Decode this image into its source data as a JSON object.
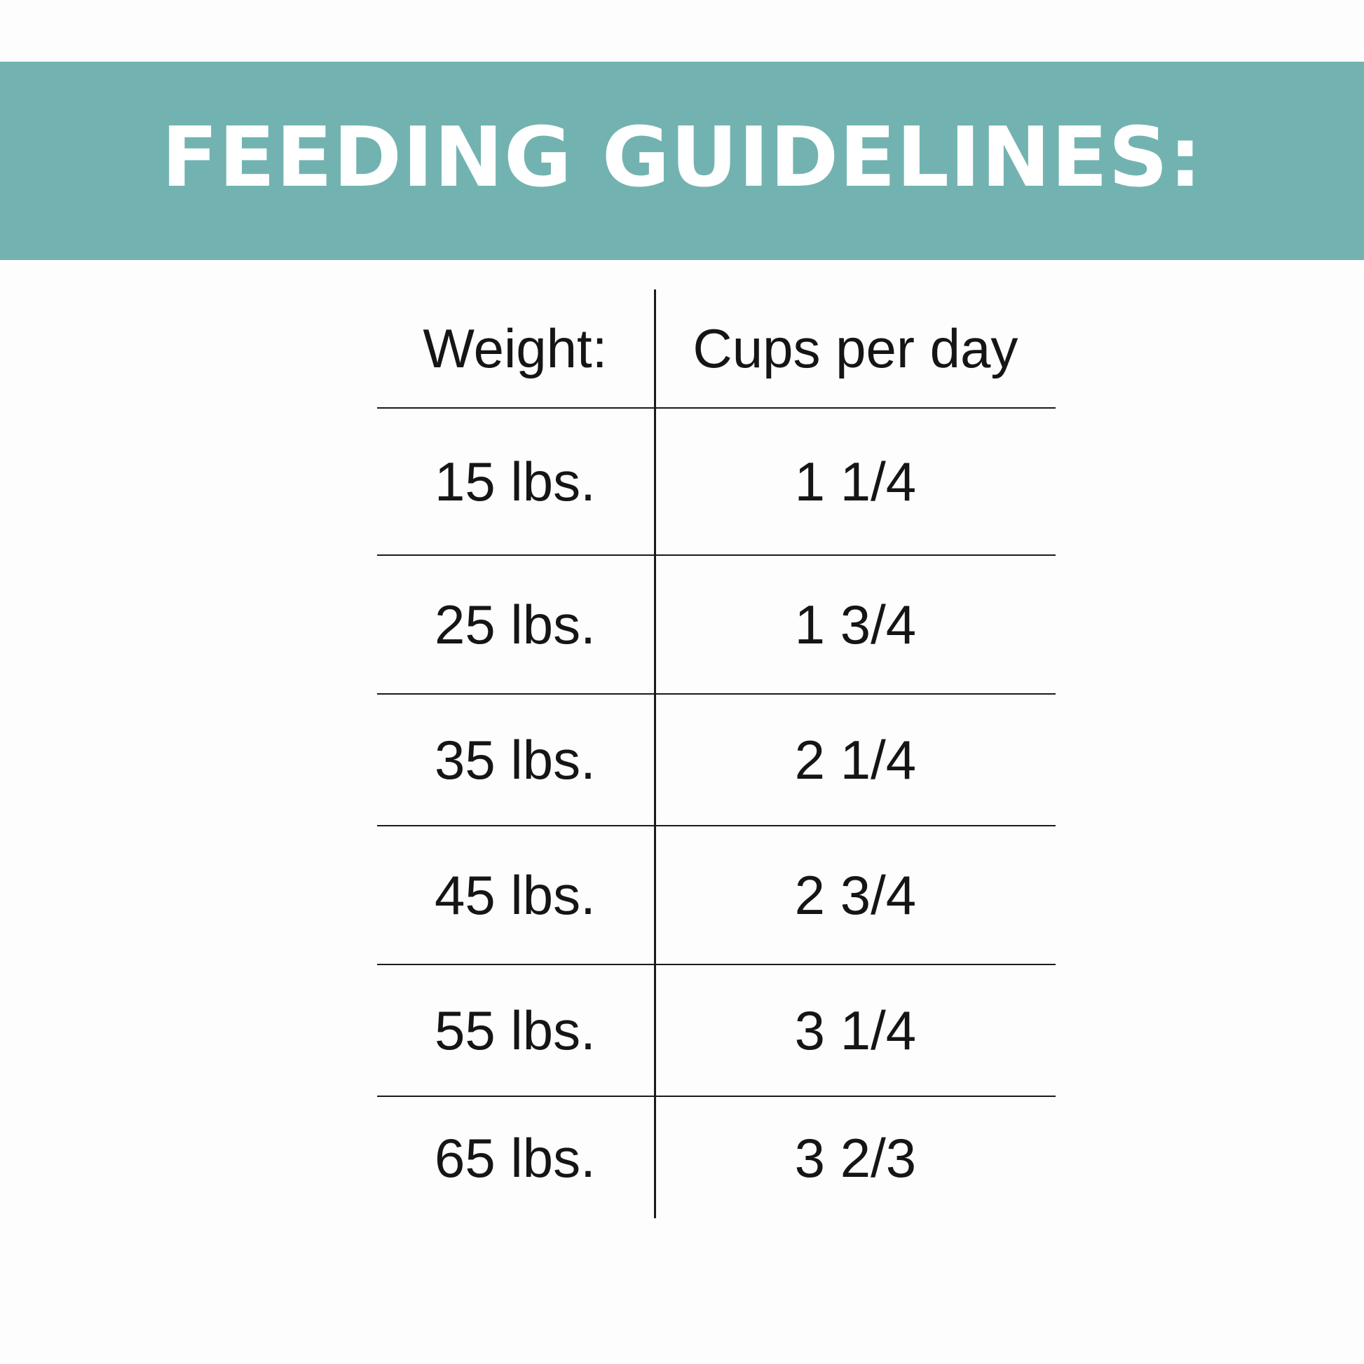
{
  "banner": {
    "title": "FEEDING GUIDELINES:",
    "background_color": "#72b3b1",
    "text_color": "#ffffff"
  },
  "table": {
    "headers": {
      "weight": "Weight:",
      "cups": "Cups per day"
    },
    "rows": [
      {
        "weight": "15 lbs.",
        "cups": "1 1/4"
      },
      {
        "weight": "25 lbs.",
        "cups": "1 3/4"
      },
      {
        "weight": "35 lbs.",
        "cups": "2 1/4"
      },
      {
        "weight": "45 lbs.",
        "cups": "2 3/4"
      },
      {
        "weight": "55 lbs.",
        "cups": "3 1/4"
      },
      {
        "weight": "65 lbs.",
        "cups": "3 2/3"
      }
    ]
  }
}
